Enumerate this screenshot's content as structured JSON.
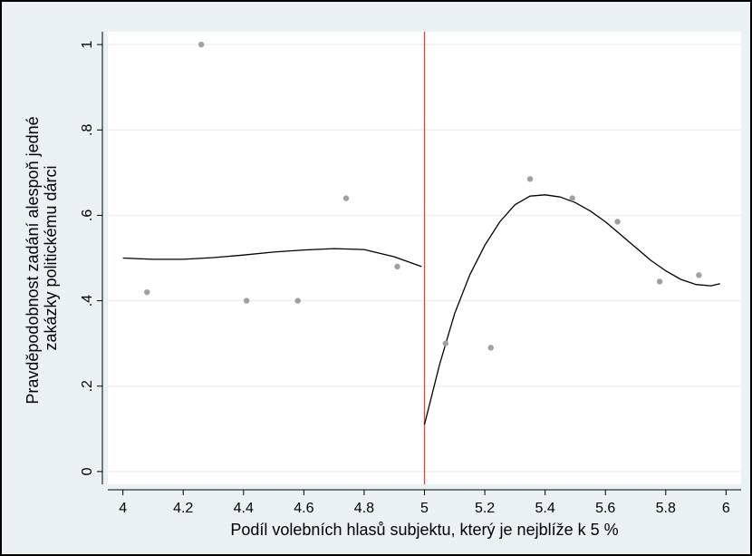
{
  "chart_data": {
    "type": "scatter",
    "xlabel": "Podíl volebních hlasů subjektu, který je nejblíže k 5 %",
    "ylabel_lines": [
      "Pravděpodobnost zadání alespoň jedné",
      "zakázky politickému dárci"
    ],
    "xlim": [
      3.95,
      6.05
    ],
    "ylim": [
      -0.03,
      1.03
    ],
    "x_ticks": [
      4,
      4.2,
      4.4,
      4.6,
      4.8,
      5,
      5.2,
      5.4,
      5.6,
      5.8,
      6
    ],
    "x_tick_labels": [
      "4",
      "4.2",
      "4.4",
      "4.6",
      "4.8",
      "5",
      "5.2",
      "5.4",
      "5.6",
      "5.8",
      "6"
    ],
    "y_ticks": [
      0,
      0.2,
      0.4,
      0.6,
      0.8,
      1
    ],
    "y_tick_labels": [
      "0",
      ".2",
      ".4",
      ".6",
      ".8",
      "1"
    ],
    "grid": "horizontal",
    "cutoff": 5,
    "points": [
      {
        "x": 4.08,
        "y": 0.42
      },
      {
        "x": 4.26,
        "y": 1.0
      },
      {
        "x": 4.41,
        "y": 0.4
      },
      {
        "x": 4.58,
        "y": 0.4
      },
      {
        "x": 4.74,
        "y": 0.64
      },
      {
        "x": 4.91,
        "y": 0.48
      },
      {
        "x": 5.07,
        "y": 0.3
      },
      {
        "x": 5.22,
        "y": 0.29
      },
      {
        "x": 5.35,
        "y": 0.685
      },
      {
        "x": 5.49,
        "y": 0.64
      },
      {
        "x": 5.64,
        "y": 0.585
      },
      {
        "x": 5.78,
        "y": 0.445
      },
      {
        "x": 5.91,
        "y": 0.46
      }
    ],
    "fit_left": [
      {
        "x": 4.0,
        "y": 0.5
      },
      {
        "x": 4.1,
        "y": 0.497
      },
      {
        "x": 4.2,
        "y": 0.497
      },
      {
        "x": 4.3,
        "y": 0.501
      },
      {
        "x": 4.4,
        "y": 0.507
      },
      {
        "x": 4.5,
        "y": 0.514
      },
      {
        "x": 4.6,
        "y": 0.519
      },
      {
        "x": 4.7,
        "y": 0.522
      },
      {
        "x": 4.8,
        "y": 0.52
      },
      {
        "x": 4.9,
        "y": 0.503
      },
      {
        "x": 4.99,
        "y": 0.48
      }
    ],
    "fit_right": [
      {
        "x": 5.0,
        "y": 0.11
      },
      {
        "x": 5.05,
        "y": 0.25
      },
      {
        "x": 5.1,
        "y": 0.37
      },
      {
        "x": 5.15,
        "y": 0.46
      },
      {
        "x": 5.2,
        "y": 0.53
      },
      {
        "x": 5.25,
        "y": 0.585
      },
      {
        "x": 5.3,
        "y": 0.625
      },
      {
        "x": 5.35,
        "y": 0.645
      },
      {
        "x": 5.4,
        "y": 0.648
      },
      {
        "x": 5.45,
        "y": 0.643
      },
      {
        "x": 5.5,
        "y": 0.63
      },
      {
        "x": 5.55,
        "y": 0.61
      },
      {
        "x": 5.6,
        "y": 0.585
      },
      {
        "x": 5.65,
        "y": 0.555
      },
      {
        "x": 5.7,
        "y": 0.525
      },
      {
        "x": 5.75,
        "y": 0.495
      },
      {
        "x": 5.8,
        "y": 0.47
      },
      {
        "x": 5.85,
        "y": 0.45
      },
      {
        "x": 5.9,
        "y": 0.438
      },
      {
        "x": 5.95,
        "y": 0.435
      },
      {
        "x": 5.98,
        "y": 0.44
      }
    ],
    "colors": {
      "background": "#eaf2f3",
      "plot_background": "#ffffff",
      "points": "#a0a0a0",
      "fit_line": "#000000",
      "cutoff_line": "#e8403a",
      "grid": "#eaf2f3"
    }
  }
}
